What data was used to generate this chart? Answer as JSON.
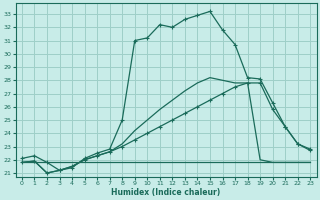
{
  "bg_color": "#c8ece8",
  "grid_color": "#9ecfc8",
  "line_color": "#1a6b5a",
  "xlabel": "Humidex (Indice chaleur)",
  "xlim": [
    -0.5,
    23.5
  ],
  "ylim": [
    20.7,
    33.8
  ],
  "yticks": [
    21,
    22,
    23,
    24,
    25,
    26,
    27,
    28,
    29,
    30,
    31,
    32,
    33
  ],
  "xticks": [
    0,
    1,
    2,
    3,
    4,
    5,
    6,
    7,
    8,
    9,
    10,
    11,
    12,
    13,
    14,
    15,
    16,
    17,
    18,
    19,
    20,
    21,
    22,
    23
  ],
  "curve1_x": [
    0,
    1,
    2,
    3,
    4,
    5,
    6,
    7,
    8,
    9,
    10,
    11,
    12,
    13,
    14,
    15,
    16,
    17,
    18,
    19,
    20,
    21,
    22,
    23
  ],
  "curve1_y": [
    22.1,
    22.3,
    21.8,
    21.2,
    21.4,
    22.1,
    22.5,
    22.8,
    25.0,
    31.0,
    31.2,
    32.2,
    32.0,
    32.6,
    32.9,
    33.2,
    31.8,
    30.7,
    28.2,
    28.1,
    26.3,
    24.5,
    23.2,
    22.7
  ],
  "curve2_x": [
    0,
    1,
    2,
    3,
    4,
    5,
    6,
    7,
    8,
    9,
    10,
    11,
    12,
    13,
    14,
    15,
    16,
    17,
    18,
    19,
    20,
    21,
    22,
    23
  ],
  "curve2_y": [
    21.8,
    21.8,
    21.8,
    21.8,
    21.8,
    21.8,
    21.8,
    21.8,
    21.8,
    21.8,
    21.8,
    21.8,
    21.8,
    21.8,
    21.8,
    21.8,
    21.8,
    21.8,
    21.8,
    21.8,
    21.8,
    21.8,
    21.8,
    21.8
  ],
  "curve3_x": [
    0,
    1,
    2,
    3,
    4,
    5,
    6,
    7,
    8,
    9,
    10,
    11,
    12,
    13,
    14,
    15,
    16,
    17,
    18,
    19,
    20,
    21,
    22,
    23
  ],
  "curve3_y": [
    21.8,
    21.9,
    21.0,
    21.2,
    21.5,
    22.0,
    22.3,
    22.6,
    23.0,
    23.5,
    24.0,
    24.5,
    25.0,
    25.5,
    26.0,
    26.5,
    27.0,
    27.5,
    27.8,
    27.8,
    25.8,
    24.5,
    23.2,
    22.8
  ],
  "curve4_x": [
    0,
    1,
    2,
    3,
    4,
    5,
    6,
    7,
    8,
    9,
    10,
    11,
    12,
    13,
    14,
    15,
    16,
    17,
    18,
    19,
    20,
    21,
    22,
    23
  ],
  "curve4_y": [
    21.8,
    21.9,
    21.0,
    21.2,
    21.5,
    22.0,
    22.3,
    22.6,
    23.2,
    24.2,
    25.0,
    25.8,
    26.5,
    27.2,
    27.8,
    28.2,
    28.0,
    27.8,
    27.8,
    22.0,
    21.8,
    21.8,
    21.8,
    21.8
  ]
}
